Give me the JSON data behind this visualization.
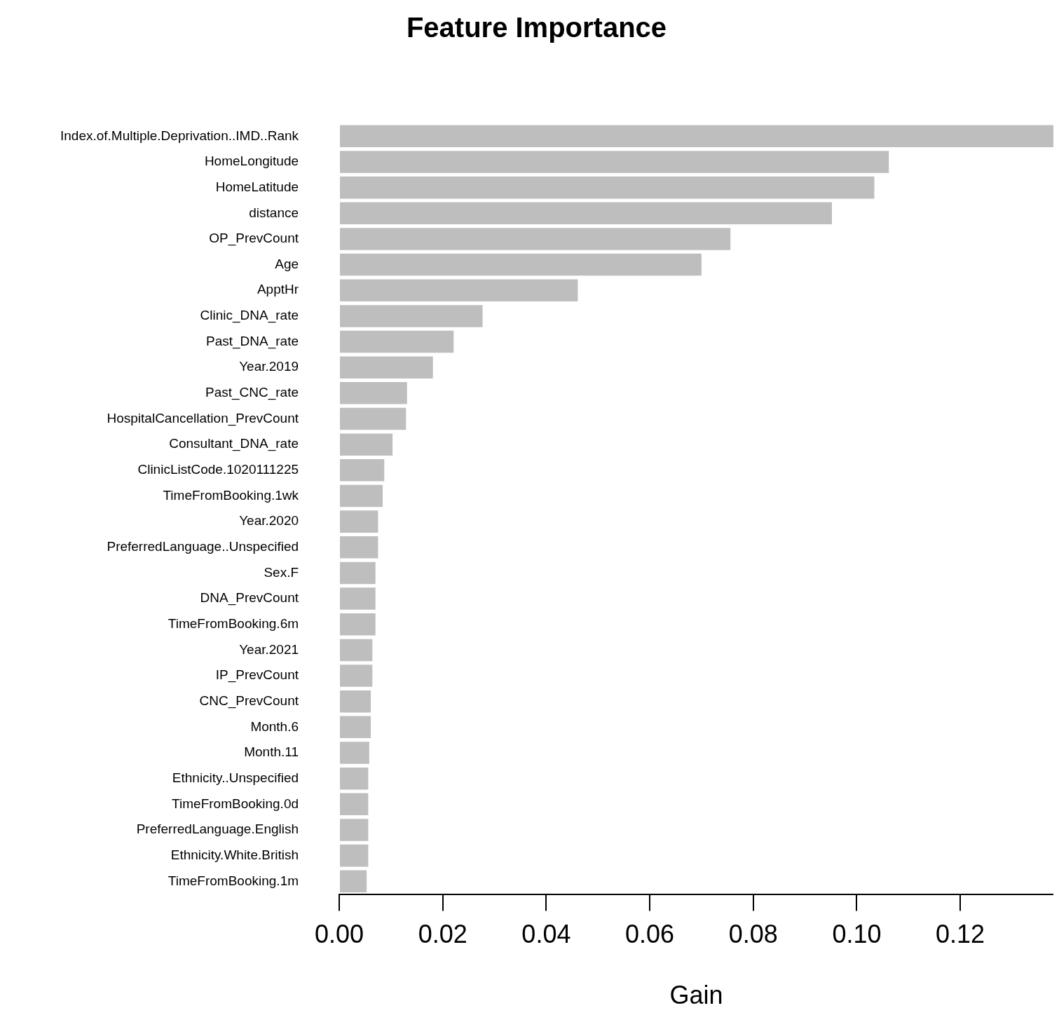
{
  "chart_data": {
    "type": "bar",
    "orientation": "horizontal",
    "title": "Feature Importance",
    "xlabel": "Gain",
    "categories": [
      "Index.of.Multiple.Deprivation..IMD..Rank",
      "HomeLongitude",
      "HomeLatitude",
      "distance",
      "OP_PrevCount",
      "Age",
      "ApptHr",
      "Clinic_DNA_rate",
      "Past_DNA_rate",
      "Year.2019",
      "Past_CNC_rate",
      "HospitalCancellation_PrevCount",
      "Consultant_DNA_rate",
      "ClinicListCode.1020111225",
      "TimeFromBooking.1wk",
      "Year.2020",
      "PreferredLanguage..Unspecified",
      "Sex.F",
      "DNA_PrevCount",
      "TimeFromBooking.6m",
      "Year.2021",
      "IP_PrevCount",
      "CNC_PrevCount",
      "Month.6",
      "Month.11",
      "Ethnicity..Unspecified",
      "TimeFromBooking.0d",
      "PreferredLanguage.English",
      "Ethnicity.White.British",
      "TimeFromBooking.1m"
    ],
    "values": [
      0.138,
      0.1062,
      0.1034,
      0.0952,
      0.0756,
      0.07,
      0.0461,
      0.0277,
      0.0221,
      0.0181,
      0.0131,
      0.0129,
      0.0103,
      0.0087,
      0.0084,
      0.0075,
      0.0075,
      0.007,
      0.007,
      0.007,
      0.0064,
      0.0064,
      0.0061,
      0.0061,
      0.0058,
      0.0056,
      0.0056,
      0.0056,
      0.0056,
      0.0053
    ],
    "color": "#bebebe",
    "xlim": [
      0,
      0.138
    ],
    "xticks": [
      {
        "value": 0,
        "label": "0.00"
      },
      {
        "value": 0.02,
        "label": "0.02"
      },
      {
        "value": 0.04,
        "label": "0.04"
      },
      {
        "value": 0.06,
        "label": "0.06"
      },
      {
        "value": 0.08,
        "label": "0.08"
      },
      {
        "value": 0.1,
        "label": "0.10"
      },
      {
        "value": 0.12,
        "label": "0.12"
      }
    ],
    "grid": false
  }
}
